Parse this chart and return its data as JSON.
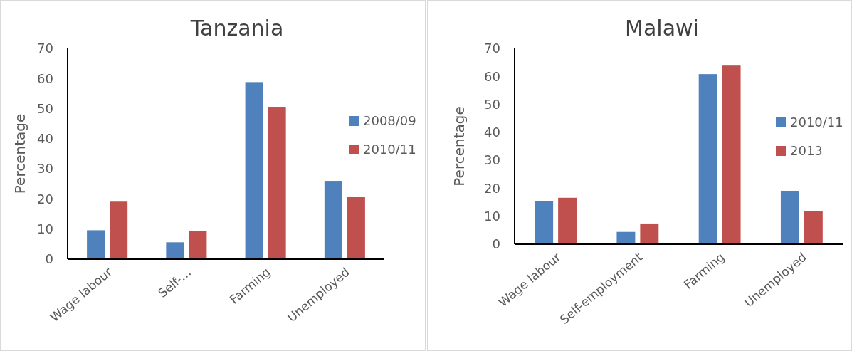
{
  "chart_data": [
    {
      "type": "bar",
      "title": "Tanzania",
      "ylabel": "Percentage",
      "categories": [
        "Wage labour",
        "Self-…",
        "Farming",
        "Unemployed"
      ],
      "series": [
        {
          "name": "2008/09",
          "color": "#4f81bd",
          "values": [
            9.6,
            5.6,
            58.8,
            26.0
          ]
        },
        {
          "name": "2010/11",
          "color": "#c0504d",
          "values": [
            19.1,
            9.4,
            50.6,
            20.7
          ]
        }
      ],
      "ylim": [
        0,
        70
      ],
      "yticks": [
        0,
        10,
        20,
        30,
        40,
        50,
        60,
        70
      ],
      "grid": false,
      "legend": "right"
    },
    {
      "type": "bar",
      "title": "Malawi",
      "ylabel": "Percentage",
      "categories": [
        "Wage labour",
        "Self-employment",
        "Farming",
        "Unemployed"
      ],
      "series": [
        {
          "name": "2010/11",
          "color": "#4f81bd",
          "values": [
            15.5,
            4.4,
            60.8,
            19.1
          ]
        },
        {
          "name": "2013",
          "color": "#c0504d",
          "values": [
            16.6,
            7.4,
            64.1,
            11.8
          ]
        }
      ],
      "ylim": [
        0,
        70
      ],
      "yticks": [
        0,
        10,
        20,
        30,
        40,
        50,
        60,
        70
      ],
      "grid": false,
      "legend": "right"
    }
  ]
}
